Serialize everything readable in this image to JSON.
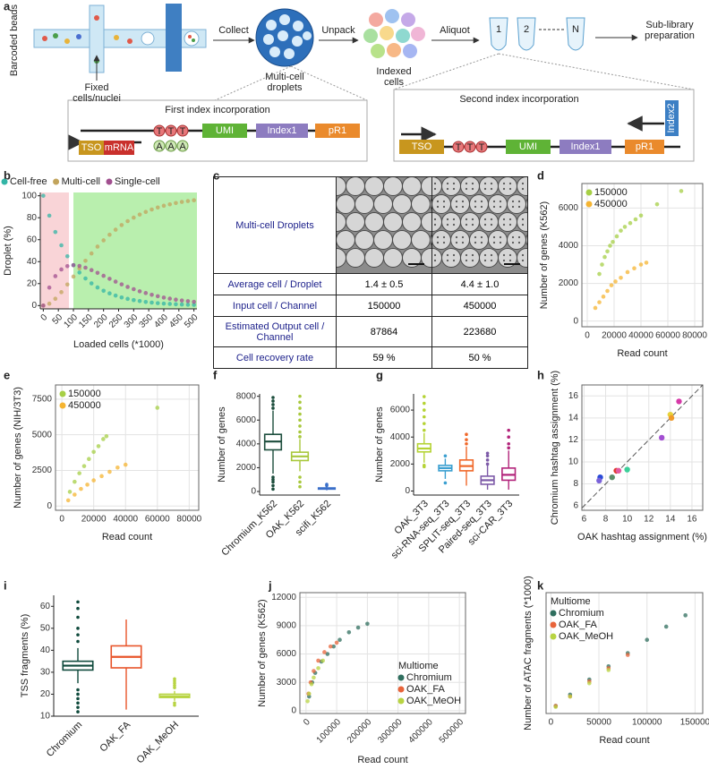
{
  "diagram": {
    "panel": "a",
    "barcoded_beads": "Barcoded beads",
    "fixed_cells": "Fixed cells/nuclei",
    "collect": "Collect",
    "droplets": "Multi-cell droplets",
    "unpack": "Unpack",
    "indexed_cells": "Indexed cells",
    "aliquot": "Aliquot",
    "tubes": [
      "1",
      "2",
      "N"
    ],
    "sublibrary": "Sub-library preparation",
    "first_index": {
      "title": "First index incorporation",
      "tso": "TSO",
      "mrna": "mRNA",
      "polyt": [
        "T",
        "T",
        "T"
      ],
      "polya": [
        "A",
        "A",
        "A"
      ],
      "umi": "UMI",
      "index1": "Index1",
      "pr1": "pR1"
    },
    "second_index": {
      "title": "Second index incorporation",
      "tso": "TSO",
      "polyt": [
        "T",
        "T",
        "T"
      ],
      "umi": "UMI",
      "index1": "Index1",
      "pr1": "pR1",
      "index2": "Index2"
    }
  },
  "table": {
    "panel": "c",
    "header": "Multi-cell Droplets",
    "rows": [
      [
        "Average cell / Droplet",
        "1.4 ± 0.5",
        "4.4 ± 1.0"
      ],
      [
        "Input cell / Channel",
        "150000",
        "450000"
      ],
      [
        "Estimated Output cell / Channel",
        "87864",
        "223680"
      ],
      [
        "Cell recovery rate",
        "59 %",
        "50 %"
      ]
    ]
  },
  "chart_data": [
    {
      "panel": "b",
      "type": "line",
      "markers": true,
      "x_label": "Loaded cells (*1000)",
      "y_label": "Droplet (%)",
      "legend": "top",
      "x": [
        0,
        20,
        40,
        60,
        80,
        100,
        120,
        140,
        160,
        180,
        200,
        220,
        240,
        260,
        280,
        300,
        320,
        340,
        360,
        380,
        400,
        420,
        440,
        460,
        480,
        500
      ],
      "series": [
        {
          "name": "Cell-free",
          "color": "#33b5a6",
          "values": [
            100,
            81.9,
            67.0,
            54.9,
            44.9,
            36.8,
            30.1,
            24.7,
            20.2,
            16.5,
            13.5,
            11.1,
            9.1,
            7.4,
            6.1,
            5.0,
            4.1,
            3.3,
            2.7,
            2.2,
            1.8,
            1.5,
            1.2,
            1.0,
            0.8,
            0.7
          ]
        },
        {
          "name": "Multi-cell",
          "color": "#c2a45c",
          "values": [
            0,
            1.7,
            6.2,
            12.2,
            19.2,
            26.4,
            33.8,
            40.8,
            47.5,
            53.7,
            59.4,
            64.5,
            69.1,
            73.3,
            76.9,
            80.1,
            82.9,
            85.3,
            87.5,
            89.3,
            90.9,
            92.2,
            93.4,
            94.4,
            95.2,
            95.9
          ]
        },
        {
          "name": "Single-cell",
          "color": "#a14f8f",
          "values": [
            0,
            16.4,
            26.8,
            32.9,
            35.9,
            36.8,
            36.1,
            34.5,
            32.3,
            29.8,
            27.1,
            24.4,
            21.8,
            19.3,
            17.0,
            14.9,
            13.0,
            11.4,
            9.8,
            8.5,
            7.3,
            6.3,
            5.4,
            4.6,
            4.0,
            3.4
          ]
        }
      ],
      "regions": [
        {
          "range": [
            -10,
            85
          ],
          "color": "#f9d4d7"
        },
        {
          "range": [
            100,
            510
          ],
          "color": "#b9efae"
        }
      ],
      "xlim": [
        -10,
        510
      ],
      "ylim": [
        -3,
        103
      ],
      "xticks": [
        0,
        50,
        100,
        150,
        200,
        250,
        300,
        350,
        400,
        450,
        500
      ],
      "yticks": [
        0,
        20,
        40,
        60,
        80,
        100
      ]
    },
    {
      "panel": "d",
      "type": "scatter",
      "x_label": "Read count",
      "y_label": "Number of genes (K562)",
      "grid": true,
      "legend": "top-left",
      "series": [
        {
          "name": "150000",
          "color": "#a6cf45",
          "x": [
            9000,
            11000,
            13000,
            15000,
            17000,
            19000,
            22000,
            25000,
            28000,
            32000,
            36000,
            40000,
            52000,
            70000
          ],
          "values": [
            2500,
            3000,
            3400,
            3700,
            4000,
            4200,
            4500,
            4800,
            5000,
            5200,
            5400,
            5600,
            6200,
            6900
          ]
        },
        {
          "name": "450000",
          "color": "#f5b431",
          "x": [
            6000,
            9000,
            12000,
            15000,
            18000,
            21000,
            25000,
            30000,
            35000,
            40000,
            44000
          ],
          "values": [
            700,
            1000,
            1300,
            1600,
            1900,
            2100,
            2300,
            2600,
            2800,
            3000,
            3100
          ]
        }
      ],
      "xlim": [
        -4000,
        86000
      ],
      "ylim": [
        -300,
        7300
      ],
      "xticks": [
        0,
        20000,
        40000,
        60000,
        80000
      ],
      "yticks": [
        0,
        2000,
        4000,
        6000
      ]
    },
    {
      "panel": "e",
      "type": "scatter",
      "x_label": "Read count",
      "y_label": "Number of genes (NIH/3T3)",
      "grid": true,
      "legend": "top-left",
      "series": [
        {
          "name": "150000",
          "color": "#a6cf45",
          "x": [
            5000,
            8000,
            11000,
            14000,
            17000,
            20000,
            23000,
            26000,
            28000,
            60000
          ],
          "values": [
            1000,
            1700,
            2300,
            2800,
            3300,
            3800,
            4200,
            4700,
            4900,
            6900
          ]
        },
        {
          "name": "450000",
          "color": "#f5b431",
          "x": [
            4000,
            8000,
            12000,
            16000,
            20000,
            25000,
            30000,
            35000,
            40000
          ],
          "values": [
            400,
            800,
            1200,
            1500,
            1800,
            2100,
            2400,
            2700,
            2900
          ]
        }
      ],
      "xlim": [
        -4000,
        86000
      ],
      "ylim": [
        -300,
        8500
      ],
      "xticks": [
        0,
        20000,
        40000,
        60000,
        80000
      ],
      "yticks": [
        0,
        2500,
        5000,
        7500
      ]
    },
    {
      "panel": "f",
      "type": "box",
      "y_label": "Number of genes",
      "boxes": [
        {
          "name": "Chromium_K562",
          "color": "#1c4d3c",
          "whisker_low": 1500,
          "q1": 3500,
          "median": 4200,
          "q3": 4800,
          "whisker_high": 6800,
          "outliers": [
            200,
            500,
            800,
            1000,
            1200,
            7000,
            7300,
            7600,
            7900
          ]
        },
        {
          "name": "OAK_K562",
          "color": "#a8c83c",
          "whisker_low": 1700,
          "q1": 2600,
          "median": 2950,
          "q3": 3300,
          "whisker_high": 4400,
          "outliers": [
            400,
            800,
            1200,
            4600,
            5000,
            5500,
            6000,
            6500,
            7000,
            7500,
            8000
          ]
        },
        {
          "name": "scifi_K562",
          "color": "#3a6fc9",
          "whisker_low": 100,
          "q1": 200,
          "median": 250,
          "q3": 300,
          "whisker_high": 450,
          "outliers": [
            500,
            600
          ]
        }
      ],
      "ylim": [
        -300,
        8200
      ],
      "yticks": [
        0,
        2000,
        4000,
        6000,
        8000
      ]
    },
    {
      "panel": "g",
      "type": "box",
      "y_label": "Number of genes",
      "boxes": [
        {
          "name": "OAK_3T3",
          "color": "#b5d334",
          "whisker_low": 2100,
          "q1": 2900,
          "median": 3150,
          "q3": 3500,
          "whisker_high": 4300,
          "outliers": [
            1800,
            1900,
            4500,
            5000,
            5500,
            6000,
            6500,
            7000
          ]
        },
        {
          "name": "sci-RNA-seq_3T3",
          "color": "#3a9fd0",
          "whisker_low": 900,
          "q1": 1500,
          "median": 1700,
          "q3": 1900,
          "whisker_high": 2400,
          "outliers": [
            600,
            2600
          ]
        },
        {
          "name": "SPLIT-seq_3T3",
          "color": "#f0682a",
          "whisker_low": 400,
          "q1": 1500,
          "median": 1850,
          "q3": 2300,
          "whisker_high": 3300,
          "outliers": [
            3500,
            3800,
            4200
          ]
        },
        {
          "name": "Paired-seq_3T3",
          "color": "#7d5aa8",
          "whisker_low": 100,
          "q1": 500,
          "median": 800,
          "q3": 1100,
          "whisker_high": 1900,
          "outliers": [
            2000,
            2300,
            2600,
            2800
          ]
        },
        {
          "name": "sci-CAR_3T3",
          "color": "#b2237a",
          "whisker_low": 100,
          "q1": 800,
          "median": 1200,
          "q3": 1700,
          "whisker_high": 3000,
          "outliers": [
            3200,
            3500,
            4000,
            4500
          ]
        }
      ],
      "ylim": [
        -300,
        7200
      ],
      "yticks": [
        0,
        2000,
        4000,
        6000
      ]
    },
    {
      "panel": "h",
      "type": "scatter",
      "x_label": "OAK hashtag assignment (%)",
      "y_label": "Chromium hashtag assignment (%)",
      "grid": true,
      "diagonal": true,
      "series": [
        {
          "x": [
            7.5,
            7.4,
            8.6,
            9.0,
            9.2,
            10.0,
            13.2,
            14.0,
            14.1,
            14.8
          ],
          "values": [
            8.6,
            8.3,
            8.6,
            9.2,
            9.2,
            9.3,
            12.2,
            14.3,
            14.0,
            15.5
          ],
          "colors": [
            "#2a4bd7",
            "#7a62d9",
            "#5b8f6a",
            "#e03a2f",
            "#e35aa0",
            "#3ccf9a",
            "#a34fd2",
            "#e8d23a",
            "#f09a2a",
            "#d639a8"
          ]
        }
      ],
      "xlim": [
        5.8,
        17
      ],
      "ylim": [
        5.6,
        17
      ],
      "xticks": [
        6,
        8,
        10,
        12,
        14,
        16
      ],
      "yticks": [
        6,
        8,
        10,
        12,
        14,
        16
      ]
    },
    {
      "panel": "i",
      "type": "box",
      "y_label": "TSS fragments (%)",
      "boxes": [
        {
          "name": "Chromium",
          "color": "#0f4a3c",
          "whisker_low": 25,
          "q1": 31,
          "median": 33,
          "q3": 35,
          "whisker_high": 41,
          "outliers": [
            12,
            14,
            16,
            18,
            20,
            22,
            44,
            47,
            50,
            55,
            59,
            62
          ]
        },
        {
          "name": "OAK_FA",
          "color": "#e8542a",
          "whisker_low": 13,
          "q1": 32,
          "median": 37,
          "q3": 42,
          "whisker_high": 54
        },
        {
          "name": "OAK_MeOH",
          "color": "#b8d442",
          "whisker_low": 17,
          "q1": 18.5,
          "median": 19,
          "q3": 20,
          "whisker_high": 21.5,
          "outliers": [
            15,
            16,
            23,
            24,
            25,
            26,
            27
          ]
        }
      ],
      "ylim": [
        10,
        65
      ],
      "yticks": [
        10,
        20,
        30,
        40,
        50,
        60
      ]
    },
    {
      "panel": "j",
      "type": "scatter",
      "x_label": "Read count",
      "y_label": "Number of genes (K562)",
      "grid": true,
      "legend": "bottom-right",
      "legend_title": "Multiome",
      "series": [
        {
          "name": "Chromium",
          "color": "#2f6e5e",
          "x": [
            10000,
            20000,
            30000,
            50000,
            70000,
            90000,
            110000,
            140000,
            170000,
            200000
          ],
          "values": [
            1500,
            3000,
            4000,
            5200,
            6000,
            6800,
            7500,
            8300,
            8800,
            9200
          ]
        },
        {
          "name": "OAK_FA",
          "color": "#e8643a",
          "x": [
            8000,
            15000,
            25000,
            40000,
            60000,
            80000,
            100000
          ],
          "values": [
            1800,
            3000,
            4200,
            5300,
            6200,
            6800,
            7200
          ]
        },
        {
          "name": "OAK_MeOH",
          "color": "#b8d442",
          "x": [
            5000,
            10000,
            18000,
            25000,
            40000,
            55000
          ],
          "values": [
            1000,
            1800,
            2800,
            3500,
            4500,
            5300
          ]
        }
      ],
      "xlim": [
        -20000,
        520000
      ],
      "ylim": [
        -300,
        12500
      ],
      "xticks": [
        0,
        100000,
        200000,
        300000,
        400000,
        500000
      ],
      "yticks": [
        0,
        3000,
        6000,
        9000,
        12000
      ]
    },
    {
      "panel": "k",
      "type": "scatter",
      "x_label": "Read count",
      "y_label": "Number of ATAC fragments (*1000)",
      "grid": true,
      "legend": "top-left",
      "legend_title": "Multiome",
      "series": [
        {
          "name": "Chromium",
          "color": "#2f6e5e",
          "x": [
            5000,
            20000,
            40000,
            60000,
            80000,
            100000,
            120000,
            140000
          ],
          "values": [
            2,
            8,
            16,
            23,
            30,
            37,
            44,
            50
          ]
        },
        {
          "name": "OAK_FA",
          "color": "#e8643a",
          "x": [
            5000,
            20000,
            40000,
            60000,
            80000
          ],
          "values": [
            2,
            7,
            15,
            22,
            29
          ]
        },
        {
          "name": "OAK_MeOH",
          "color": "#b8d442",
          "x": [
            5000,
            20000,
            40000,
            60000
          ],
          "values": [
            1.5,
            7,
            14,
            21
          ]
        }
      ],
      "xlim": [
        -5000,
        158000
      ],
      "ylim": [
        -2,
        62
      ],
      "xticks": [
        0,
        50000,
        100000,
        150000
      ]
    }
  ]
}
